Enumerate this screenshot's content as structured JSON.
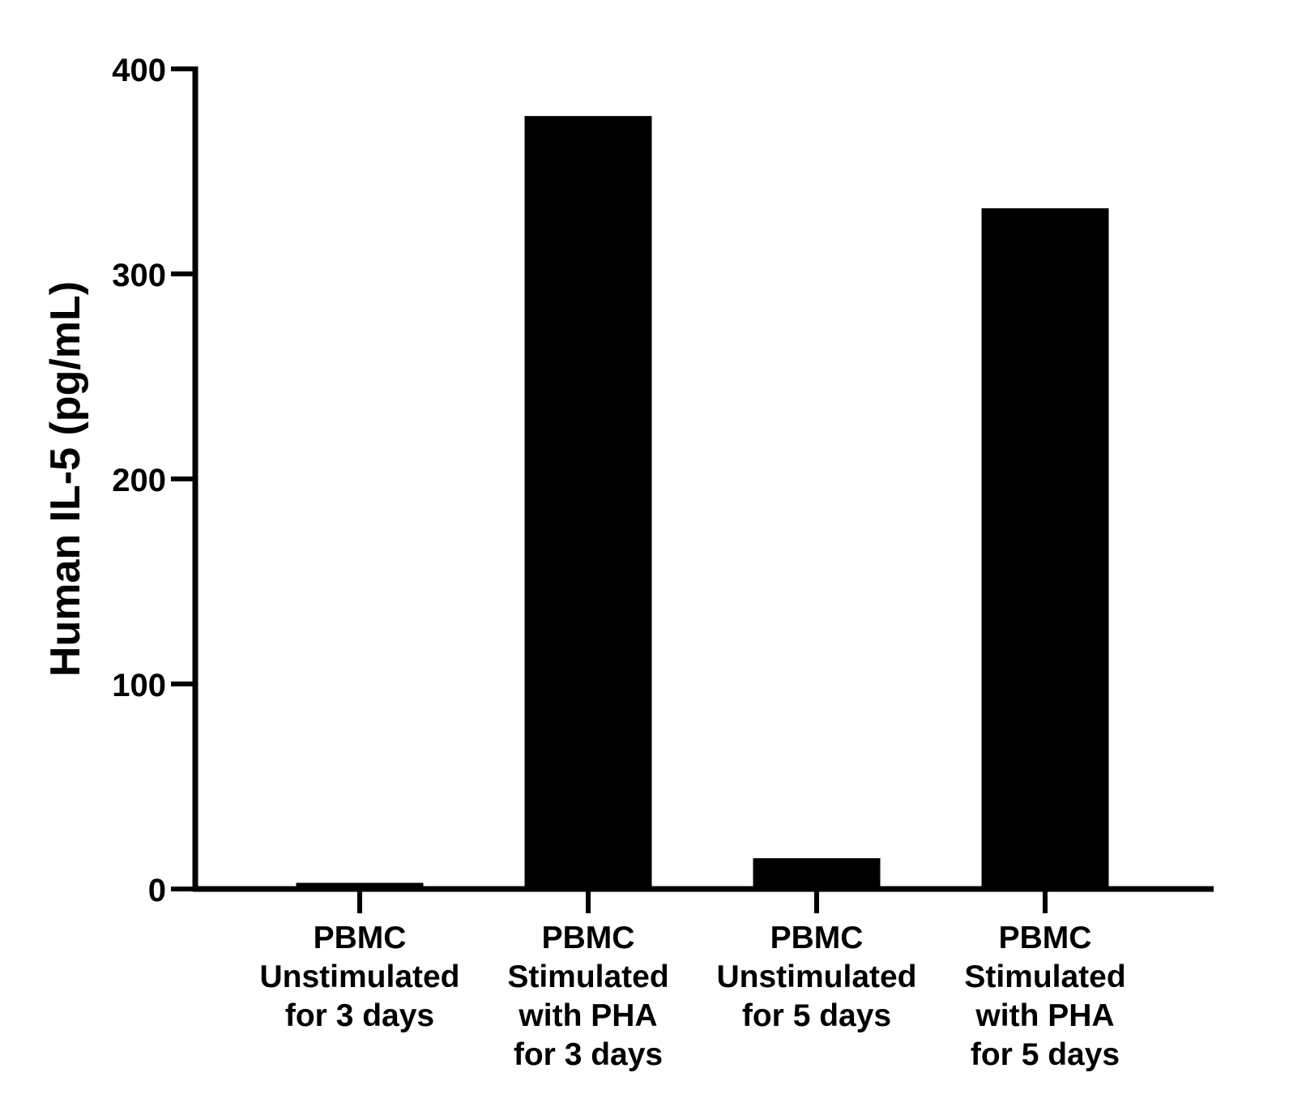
{
  "chart_data": {
    "type": "bar",
    "title": "",
    "xlabel": "",
    "ylabel": "Human IL-5 (pg/mL)",
    "ylim": [
      0,
      400
    ],
    "yticks": [
      0,
      100,
      200,
      300,
      400
    ],
    "grid": false,
    "categories": [
      [
        "PBMC",
        "Unstimulated",
        "for 3 days"
      ],
      [
        "PBMC",
        "Stimulated",
        "with PHA",
        "for 3 days"
      ],
      [
        "PBMC",
        "Unstimulated",
        "for 5 days"
      ],
      [
        "PBMC",
        "Stimulated",
        "with PHA",
        "for 5 days"
      ]
    ],
    "values": [
      3,
      377,
      15,
      332
    ],
    "bar_color": "#000000"
  }
}
